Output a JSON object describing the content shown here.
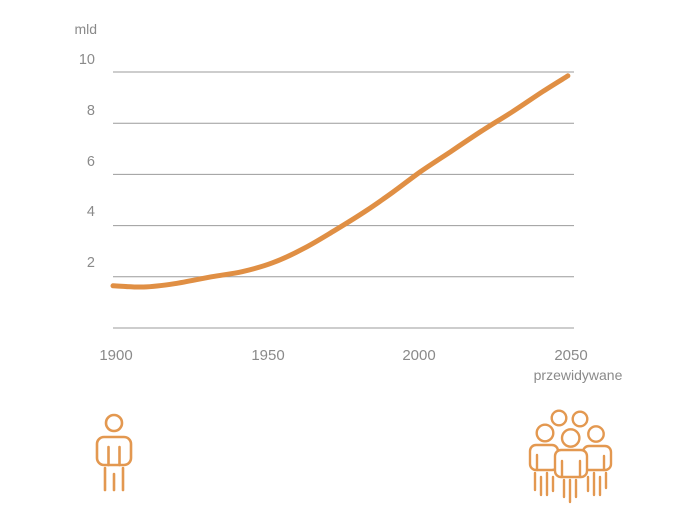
{
  "chart_data": {
    "type": "line",
    "title": "",
    "unit_label": "mld",
    "xlabel": "",
    "ylabel": "mld",
    "x_note": "przewidywane",
    "xlim": [
      1900,
      2050
    ],
    "ylim": [
      0,
      10
    ],
    "x_ticks": [
      "1900",
      "1950",
      "2000",
      "2050"
    ],
    "y_ticks": [
      "2",
      "4",
      "6",
      "8",
      "10"
    ],
    "y_gridline_values": [
      0,
      2,
      4,
      6,
      8,
      10
    ],
    "grid": true,
    "legend_position": "none",
    "series": [
      {
        "name": "world-population-mld",
        "x": [
          1900,
          1910,
          1920,
          1932,
          1942,
          1952,
          1962,
          1972,
          1982,
          1991,
          2000,
          2010,
          2020,
          2030,
          2040,
          2048
        ],
        "values": [
          1.65,
          1.6,
          1.73,
          2.0,
          2.2,
          2.55,
          3.1,
          3.8,
          4.55,
          5.3,
          6.1,
          6.9,
          7.7,
          8.45,
          9.25,
          9.85
        ]
      }
    ],
    "colors": {
      "line": "#e08f44",
      "grid": "#9b9b9b",
      "text": "#8a8a8a",
      "icon": "#e39850",
      "background": "#ffffff"
    }
  },
  "icons": {
    "left": "single-person-icon",
    "right": "crowd-icon"
  }
}
